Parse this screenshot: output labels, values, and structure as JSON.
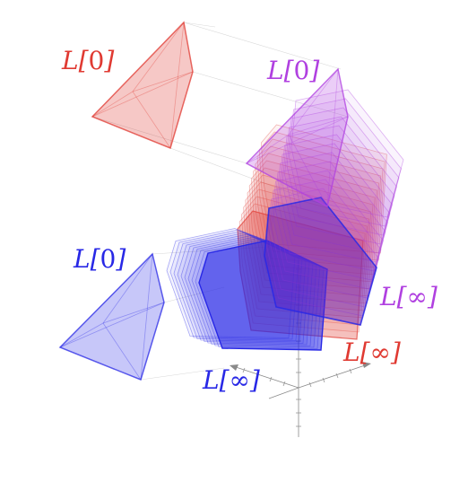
{
  "colors": {
    "red": "#e03a32",
    "purple": "#b040e0",
    "blue": "#2828e6"
  },
  "labels": {
    "red_start": {
      "prefix": "L[",
      "index": "0",
      "suffix": "]"
    },
    "purple_start": {
      "prefix": "L[",
      "index": "0",
      "suffix": "]"
    },
    "blue_start": {
      "prefix": "L[",
      "index": "0",
      "suffix": "]"
    },
    "purple_end": {
      "prefix": "L[",
      "index": "∞",
      "suffix": "]"
    },
    "red_end": {
      "prefix": "L[",
      "index": "∞",
      "suffix": "]"
    },
    "blue_end": {
      "prefix": "L[",
      "index": "∞",
      "suffix": "]"
    }
  }
}
